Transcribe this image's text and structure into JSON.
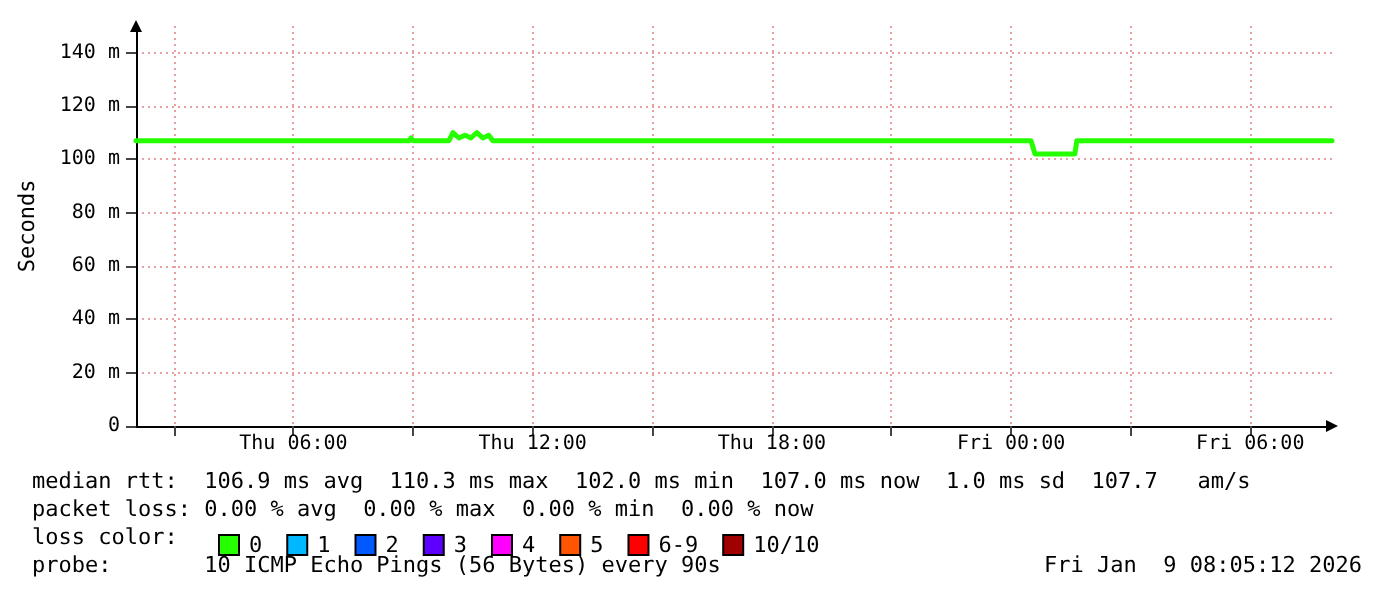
{
  "chart_data": {
    "type": "line",
    "ylabel": "Seconds",
    "legend_title": "loss color:",
    "legend": "bottom",
    "grid": true,
    "marker": "none",
    "line_style": "solid",
    "xlim": [
      "2026-01-08T02:03",
      "2026-01-09T08:03"
    ],
    "xticks": [
      {
        "value": "2026-01-08T03:00",
        "label": null
      },
      {
        "value": "2026-01-08T06:00",
        "label": "Thu 06:00"
      },
      {
        "value": "2026-01-08T09:00",
        "label": null
      },
      {
        "value": "2026-01-08T12:00",
        "label": "Thu 12:00"
      },
      {
        "value": "2026-01-08T15:00",
        "label": null
      },
      {
        "value": "2026-01-08T18:00",
        "label": "Thu 18:00"
      },
      {
        "value": "2026-01-08T21:00",
        "label": null
      },
      {
        "value": "2026-01-09T00:00",
        "label": "Fri 00:00"
      },
      {
        "value": "2026-01-09T03:00",
        "label": null
      },
      {
        "value": "2026-01-09T06:00",
        "label": "Fri 06:00"
      }
    ],
    "ylim": [
      0,
      150
    ],
    "yticks": [
      {
        "value": 0,
        "label": "0"
      },
      {
        "value": 20,
        "label": "20 m"
      },
      {
        "value": 40,
        "label": "40 m"
      },
      {
        "value": 60,
        "label": "60 m"
      },
      {
        "value": 80,
        "label": "80 m"
      },
      {
        "value": 100,
        "label": "100 m"
      },
      {
        "value": 120,
        "label": "120 m"
      },
      {
        "value": 140,
        "label": "140 m"
      }
    ],
    "x": [
      "2026-01-08T02:03",
      "2026-01-08T08:54",
      "2026-01-08T08:57",
      "2026-01-08T09:00",
      "2026-01-08T09:54",
      "2026-01-08T10:00",
      "2026-01-08T10:09",
      "2026-01-08T10:18",
      "2026-01-08T10:27",
      "2026-01-08T10:36",
      "2026-01-08T10:45",
      "2026-01-08T10:54",
      "2026-01-08T11:00",
      "2026-01-09T00:30",
      "2026-01-09T00:36",
      "2026-01-09T01:36",
      "2026-01-09T01:39",
      "2026-01-09T08:03"
    ],
    "series": [
      {
        "name": "0",
        "color": "#26ff00",
        "values": [
          107,
          107,
          108,
          107,
          107,
          110,
          108,
          109,
          108,
          110,
          108,
          109,
          107,
          107,
          102,
          102,
          107,
          107
        ]
      },
      {
        "name": "1",
        "color": "#00b8ff",
        "values": [
          null,
          null,
          null,
          null,
          null,
          null,
          null,
          null,
          null,
          null,
          null,
          null,
          null,
          null,
          null,
          null,
          null,
          null
        ]
      },
      {
        "name": "2",
        "color": "#0059ff",
        "values": [
          null,
          null,
          null,
          null,
          null,
          null,
          null,
          null,
          null,
          null,
          null,
          null,
          null,
          null,
          null,
          null,
          null,
          null
        ]
      },
      {
        "name": "3",
        "color": "#5e00ff",
        "values": [
          null,
          null,
          null,
          null,
          null,
          null,
          null,
          null,
          null,
          null,
          null,
          null,
          null,
          null,
          null,
          null,
          null,
          null
        ]
      },
      {
        "name": "4",
        "color": "#ff00ff",
        "values": [
          null,
          null,
          null,
          null,
          null,
          null,
          null,
          null,
          null,
          null,
          null,
          null,
          null,
          null,
          null,
          null,
          null,
          null
        ]
      },
      {
        "name": "5",
        "color": "#ff5500",
        "values": [
          null,
          null,
          null,
          null,
          null,
          null,
          null,
          null,
          null,
          null,
          null,
          null,
          null,
          null,
          null,
          null,
          null,
          null
        ]
      },
      {
        "name": "6-9",
        "color": "#ff0000",
        "values": [
          null,
          null,
          null,
          null,
          null,
          null,
          null,
          null,
          null,
          null,
          null,
          null,
          null,
          null,
          null,
          null,
          null,
          null
        ]
      },
      {
        "name": "10/10",
        "color": "#a10000",
        "values": [
          null,
          null,
          null,
          null,
          null,
          null,
          null,
          null,
          null,
          null,
          null,
          null,
          null,
          null,
          null,
          null,
          null,
          null
        ]
      }
    ],
    "annotations": [
      "median rtt:  106.9 ms avg  110.3 ms max  102.0 ms min  107.0 ms now  1.0 ms sd  107.7   am/s",
      "packet loss: 0.00 % avg  0.00 % max  0.00 % min  0.00 % now",
      "probe:       10 ICMP Echo Pings (56 Bytes) every 90s",
      "Fri Jan  9 08:05:12 2026"
    ]
  }
}
